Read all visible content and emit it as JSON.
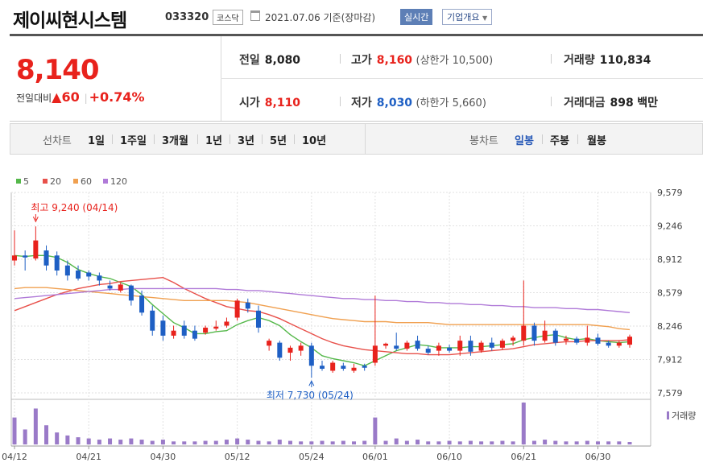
{
  "header": {
    "company": "제이씨현시스템",
    "code": "033320",
    "market_badge": "코스닥",
    "date": "2021.07.06 기준(장마감)",
    "realtime_button": "실시간",
    "corp_button": "기업개요",
    "calendar_icon": "calendar-icon",
    "dropdown_icon": "chevron-down-icon"
  },
  "quote": {
    "price": "8,140",
    "change_label": "전일대비",
    "change_value": "▲60",
    "change_pct": "+0.74%",
    "prev_close_label": "전일",
    "prev_close": "8,080",
    "high_label": "고가",
    "high": "8,160",
    "upper_limit": "(상한가 10,500)",
    "volume_label": "거래량",
    "volume": "110,834",
    "open_label": "시가",
    "open": "8,110",
    "low_label": "저가",
    "low": "8,030",
    "lower_limit": "(하한가 5,660)",
    "amount_label": "거래대금",
    "amount": "898",
    "amount_unit": "백만"
  },
  "toolbar": {
    "line_chart_label": "선차트",
    "periods": [
      "1일",
      "1주일",
      "3개월",
      "1년",
      "3년",
      "5년",
      "10년"
    ],
    "candle_chart_label": "봉차트",
    "candle_types": [
      "일봉",
      "주봉",
      "월봉"
    ],
    "selected_candle": "일봉"
  },
  "colors": {
    "up": "#e8221c",
    "down": "#1e5fc4",
    "ma5": "#55b84a",
    "ma20": "#e8504a",
    "ma60": "#f0a050",
    "ma120": "#b07ad8",
    "volume": "#9a7ac8"
  },
  "chart_data": {
    "type": "candlestick",
    "legend": [
      "5",
      "20",
      "60",
      "120"
    ],
    "yticks": [
      "9,579",
      "9,246",
      "8,912",
      "8,579",
      "8,246",
      "7,912",
      "7,579"
    ],
    "ylim": [
      7579,
      9579
    ],
    "xticks": [
      "04/12",
      "04/21",
      "04/30",
      "05/12",
      "05/24",
      "06/01",
      "06/10",
      "06/21",
      "06/30"
    ],
    "xtick_index": [
      0,
      7,
      14,
      21,
      28,
      34,
      41,
      48,
      55
    ],
    "max_annotation": "최고 9,240 (04/14)",
    "max_index": 2,
    "max_value": 9240,
    "min_annotation": "최저 7,730 (05/24)",
    "min_index": 28,
    "min_value": 7730,
    "volume_label": "거래량",
    "candles": [
      {
        "o": 8900,
        "h": 9200,
        "l": 8850,
        "c": 8950
      },
      {
        "o": 8950,
        "h": 9000,
        "l": 8800,
        "c": 8930
      },
      {
        "o": 8920,
        "h": 9240,
        "l": 8900,
        "c": 9100
      },
      {
        "o": 9000,
        "h": 9050,
        "l": 8800,
        "c": 8850
      },
      {
        "o": 8950,
        "h": 8990,
        "l": 8750,
        "c": 8800
      },
      {
        "o": 8850,
        "h": 8900,
        "l": 8700,
        "c": 8750
      },
      {
        "o": 8800,
        "h": 8850,
        "l": 8700,
        "c": 8720
      },
      {
        "o": 8780,
        "h": 8800,
        "l": 8700,
        "c": 8740
      },
      {
        "o": 8750,
        "h": 8780,
        "l": 8650,
        "c": 8700
      },
      {
        "o": 8650,
        "h": 8700,
        "l": 8600,
        "c": 8620
      },
      {
        "o": 8600,
        "h": 8680,
        "l": 8580,
        "c": 8660
      },
      {
        "o": 8650,
        "h": 8660,
        "l": 8450,
        "c": 8500
      },
      {
        "o": 8550,
        "h": 8600,
        "l": 8350,
        "c": 8380
      },
      {
        "o": 8400,
        "h": 8450,
        "l": 8150,
        "c": 8200
      },
      {
        "o": 8300,
        "h": 8350,
        "l": 8100,
        "c": 8150
      },
      {
        "o": 8150,
        "h": 8250,
        "l": 8120,
        "c": 8200
      },
      {
        "o": 8250,
        "h": 8300,
        "l": 8120,
        "c": 8150
      },
      {
        "o": 8200,
        "h": 8250,
        "l": 8100,
        "c": 8120
      },
      {
        "o": 8180,
        "h": 8250,
        "l": 8160,
        "c": 8230
      },
      {
        "o": 8220,
        "h": 8300,
        "l": 8200,
        "c": 8240
      },
      {
        "o": 8250,
        "h": 8330,
        "l": 8230,
        "c": 8290
      },
      {
        "o": 8330,
        "h": 8520,
        "l": 8300,
        "c": 8500
      },
      {
        "o": 8480,
        "h": 8520,
        "l": 8380,
        "c": 8420
      },
      {
        "o": 8400,
        "h": 8450,
        "l": 8180,
        "c": 8230
      },
      {
        "o": 8050,
        "h": 8120,
        "l": 8000,
        "c": 8100
      },
      {
        "o": 8080,
        "h": 8100,
        "l": 7900,
        "c": 7930
      },
      {
        "o": 7980,
        "h": 8050,
        "l": 7900,
        "c": 8030
      },
      {
        "o": 8000,
        "h": 8080,
        "l": 7950,
        "c": 8050
      },
      {
        "o": 8050,
        "h": 8080,
        "l": 7730,
        "c": 7850
      },
      {
        "o": 7850,
        "h": 7900,
        "l": 7800,
        "c": 7820
      },
      {
        "o": 7800,
        "h": 7900,
        "l": 7780,
        "c": 7880
      },
      {
        "o": 7850,
        "h": 7880,
        "l": 7800,
        "c": 7820
      },
      {
        "o": 7800,
        "h": 7870,
        "l": 7780,
        "c": 7830
      },
      {
        "o": 7850,
        "h": 7870,
        "l": 7800,
        "c": 7830
      },
      {
        "o": 7880,
        "h": 8550,
        "l": 7850,
        "c": 8050
      },
      {
        "o": 8050,
        "h": 8080,
        "l": 8020,
        "c": 8070
      },
      {
        "o": 8050,
        "h": 8180,
        "l": 8000,
        "c": 8020
      },
      {
        "o": 8020,
        "h": 8100,
        "l": 8000,
        "c": 8080
      },
      {
        "o": 8100,
        "h": 8150,
        "l": 8000,
        "c": 8020
      },
      {
        "o": 8020,
        "h": 8050,
        "l": 7960,
        "c": 7980
      },
      {
        "o": 8000,
        "h": 8080,
        "l": 7950,
        "c": 8050
      },
      {
        "o": 8030,
        "h": 8060,
        "l": 7980,
        "c": 8000
      },
      {
        "o": 8000,
        "h": 8150,
        "l": 7950,
        "c": 8100
      },
      {
        "o": 8100,
        "h": 8150,
        "l": 7950,
        "c": 7990
      },
      {
        "o": 8000,
        "h": 8100,
        "l": 7980,
        "c": 8080
      },
      {
        "o": 8080,
        "h": 8130,
        "l": 8000,
        "c": 8030
      },
      {
        "o": 8030,
        "h": 8120,
        "l": 8010,
        "c": 8100
      },
      {
        "o": 8100,
        "h": 8150,
        "l": 8050,
        "c": 8130
      },
      {
        "o": 8100,
        "h": 8700,
        "l": 8050,
        "c": 8250
      },
      {
        "o": 8250,
        "h": 8280,
        "l": 8050,
        "c": 8100
      },
      {
        "o": 8100,
        "h": 8300,
        "l": 8080,
        "c": 8200
      },
      {
        "o": 8200,
        "h": 8220,
        "l": 8050,
        "c": 8080
      },
      {
        "o": 8100,
        "h": 8150,
        "l": 8060,
        "c": 8120
      },
      {
        "o": 8120,
        "h": 8140,
        "l": 8060,
        "c": 8080
      },
      {
        "o": 8080,
        "h": 8250,
        "l": 8050,
        "c": 8130
      },
      {
        "o": 8130,
        "h": 8170,
        "l": 8050,
        "c": 8070
      },
      {
        "o": 8080,
        "h": 8100,
        "l": 8030,
        "c": 8050
      },
      {
        "o": 8050,
        "h": 8100,
        "l": 8030,
        "c": 8080
      },
      {
        "o": 8060,
        "h": 8160,
        "l": 8030,
        "c": 8140
      }
    ],
    "volumes": [
      45,
      25,
      60,
      32,
      20,
      15,
      12,
      10,
      8,
      10,
      8,
      10,
      8,
      6,
      8,
      5,
      5,
      5,
      6,
      6,
      8,
      10,
      8,
      6,
      5,
      8,
      6,
      5,
      5,
      6,
      5,
      6,
      5,
      6,
      45,
      6,
      10,
      6,
      8,
      5,
      5,
      6,
      5,
      6,
      5,
      5,
      6,
      5,
      70,
      6,
      8,
      6,
      5,
      5,
      6,
      5,
      5,
      5,
      4
    ],
    "volume_max": 70,
    "series": [
      {
        "name": "5",
        "values": [
          8950,
          8940,
          8950,
          8950,
          8930,
          8880,
          8810,
          8770,
          8740,
          8720,
          8680,
          8640,
          8560,
          8460,
          8370,
          8280,
          8230,
          8170,
          8170,
          8190,
          8200,
          8260,
          8300,
          8330,
          8300,
          8250,
          8160,
          8090,
          8030,
          7950,
          7920,
          7900,
          7880,
          7850,
          7900,
          7950,
          8000,
          8030,
          8060,
          8050,
          8030,
          8030,
          8030,
          8040,
          8040,
          8050,
          8060,
          8070,
          8110,
          8130,
          8150,
          8160,
          8130,
          8110,
          8120,
          8100,
          8090,
          8080,
          8090
        ]
      },
      {
        "name": "20",
        "values": [
          8400,
          8440,
          8480,
          8520,
          8560,
          8590,
          8620,
          8640,
          8660,
          8670,
          8690,
          8700,
          8710,
          8720,
          8730,
          8680,
          8620,
          8570,
          8520,
          8480,
          8440,
          8420,
          8400,
          8390,
          8360,
          8320,
          8270,
          8220,
          8170,
          8120,
          8080,
          8050,
          8030,
          8010,
          8000,
          7990,
          7980,
          7970,
          7970,
          7960,
          7960,
          7960,
          7970,
          7980,
          7990,
          8000,
          8010,
          8020,
          8040,
          8060,
          8070,
          8080,
          8090,
          8090,
          8100,
          8100,
          8100,
          8100,
          8110
        ]
      },
      {
        "name": "60",
        "values": [
          8620,
          8630,
          8630,
          8630,
          8620,
          8610,
          8600,
          8590,
          8580,
          8570,
          8560,
          8550,
          8540,
          8530,
          8520,
          8510,
          8500,
          8500,
          8500,
          8500,
          8500,
          8490,
          8480,
          8460,
          8440,
          8420,
          8400,
          8380,
          8360,
          8340,
          8320,
          8310,
          8300,
          8290,
          8290,
          8290,
          8280,
          8280,
          8280,
          8280,
          8270,
          8260,
          8260,
          8260,
          8260,
          8260,
          8260,
          8260,
          8260,
          8260,
          8260,
          8260,
          8260,
          8260,
          8260,
          8250,
          8240,
          8220,
          8210
        ]
      },
      {
        "name": "120",
        "values": [
          8520,
          8530,
          8540,
          8550,
          8560,
          8570,
          8580,
          8590,
          8600,
          8610,
          8610,
          8620,
          8620,
          8620,
          8620,
          8620,
          8620,
          8620,
          8620,
          8620,
          8610,
          8610,
          8600,
          8600,
          8590,
          8580,
          8570,
          8560,
          8550,
          8540,
          8530,
          8520,
          8520,
          8510,
          8510,
          8500,
          8500,
          8490,
          8490,
          8480,
          8480,
          8470,
          8470,
          8460,
          8460,
          8450,
          8450,
          8440,
          8440,
          8430,
          8430,
          8430,
          8420,
          8420,
          8410,
          8410,
          8400,
          8390,
          8380
        ]
      }
    ]
  }
}
